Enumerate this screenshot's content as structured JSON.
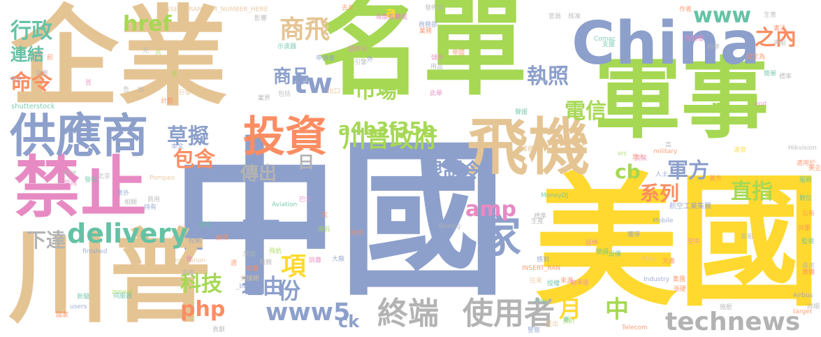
{
  "palette": {
    "green": "#a6d854",
    "tan": "#e5c494",
    "blue": "#8da0cb",
    "pink": "#e78ac3",
    "orange": "#fc8d62",
    "teal": "#66c2a5",
    "yellow": "#ffd92f",
    "gray": "#b3b3b3"
  },
  "words": [
    {
      "text": "中國",
      "color": "blue"
    },
    {
      "text": "美國",
      "color": "yellow"
    },
    {
      "text": "名單",
      "color": "green"
    },
    {
      "text": "企業",
      "color": "tan"
    },
    {
      "text": "軍事",
      "color": "green"
    },
    {
      "text": "China",
      "color": "blue"
    },
    {
      "text": "川普",
      "color": "tan"
    },
    {
      "text": "禁止",
      "color": "pink"
    },
    {
      "text": "飛機",
      "color": "tan"
    },
    {
      "text": "供應商",
      "color": "blue"
    },
    {
      "text": "投資",
      "color": "orange"
    },
    {
      "text": "家",
      "color": "blue"
    },
    {
      "text": "終端",
      "color": "gray"
    },
    {
      "text": "使用者",
      "color": "gray"
    },
    {
      "text": "technews",
      "color": "gray"
    },
    {
      "text": "www5",
      "color": "blue"
    },
    {
      "text": "delivery",
      "color": "teal"
    },
    {
      "text": "川普政府",
      "color": "green"
    },
    {
      "text": "www",
      "color": "teal"
    },
    {
      "text": "a4b3f35b",
      "color": "green"
    },
    {
      "text": "商飛",
      "color": "tan"
    },
    {
      "text": "行政",
      "color": "teal"
    },
    {
      "text": "連結",
      "color": "teal"
    },
    {
      "text": "命令",
      "color": "orange"
    },
    {
      "text": "執照",
      "color": "blue"
    },
    {
      "text": "電信",
      "color": "green"
    },
    {
      "text": "市場",
      "color": "green"
    },
    {
      "text": "草擬",
      "color": "blue"
    },
    {
      "text": "直指",
      "color": "green"
    },
    {
      "text": "軍方",
      "color": "blue"
    },
    {
      "text": "amp",
      "color": "pink"
    },
    {
      "text": "php",
      "color": "orange"
    },
    {
      "text": "科技",
      "color": "green"
    },
    {
      "text": "理由",
      "color": "blue"
    },
    {
      "text": "項",
      "color": "yellow"
    },
    {
      "text": "包含",
      "color": "orange"
    },
    {
      "text": "href",
      "color": "green"
    },
    {
      "text": "tw",
      "color": "blue"
    },
    {
      "text": "商品",
      "color": "blue"
    },
    {
      "text": "限制令",
      "color": "blue"
    },
    {
      "text": "傳出",
      "color": "gray"
    },
    {
      "text": "購買",
      "color": "blue"
    },
    {
      "text": "系列",
      "color": "orange"
    },
    {
      "text": "下達",
      "color": "gray"
    },
    {
      "text": "cb",
      "color": "green"
    },
    {
      "text": "月",
      "color": "yellow"
    },
    {
      "text": "中",
      "color": "green"
    },
    {
      "text": "ck",
      "color": "blue"
    },
    {
      "text": "份",
      "color": "blue"
    },
    {
      "text": "日",
      "color": "gray"
    },
    {
      "text": "之內",
      "color": "orange"
    },
    {
      "text": "n",
      "color": "green"
    },
    {
      "text": "a",
      "color": "yellow"
    },
    {
      "text": "INSERT_RANDOM_NUMBER_HERE",
      "color": "tan"
    },
    {
      "text": "shutterstock",
      "color": "teal"
    },
    {
      "text": "Comac",
      "color": "teal"
    },
    {
      "text": "Boeing",
      "color": "gray"
    },
    {
      "text": "Hikvision",
      "color": "gray"
    },
    {
      "text": "military",
      "color": "orange"
    },
    {
      "text": "Mobile",
      "color": "blue"
    },
    {
      "text": "Pompeo",
      "color": "tan"
    },
    {
      "text": "Aviation",
      "color": "teal"
    },
    {
      "text": "Corporation",
      "color": "tan"
    },
    {
      "text": "MoneyDJ",
      "color": "teal"
    },
    {
      "text": "finished",
      "color": "blue"
    },
    {
      "text": "航空工業集團",
      "color": "blue"
    },
    {
      "text": "Industry",
      "color": "blue"
    },
    {
      "text": "INSERT_RAN",
      "color": "orange"
    },
    {
      "text": "zoneid",
      "color": "green"
    },
    {
      "text": "users",
      "color": "blue"
    },
    {
      "text": "Airbus",
      "color": "blue"
    },
    {
      "text": "target",
      "color": "orange"
    },
    {
      "text": "Telecom",
      "color": "orange"
    },
    {
      "text": "img",
      "color": "teal"
    },
    {
      "text": "Mike",
      "color": "tan"
    },
    {
      "text": "end",
      "color": "pink"
    },
    {
      "text": "avw",
      "color": "gray"
    },
    {
      "text": "src",
      "color": "green"
    },
    {
      "text": "_blank",
      "color": "blue"
    },
    {
      "text": "支援",
      "color": "teal"
    },
    {
      "text": "科學",
      "color": "gray"
    },
    {
      "text": "認定為",
      "color": "orange"
    },
    {
      "text": "簡單",
      "color": "teal"
    },
    {
      "text": "官員",
      "color": "gray"
    },
    {
      "text": "核准",
      "color": "gray"
    },
    {
      "text": "生意",
      "color": "gray"
    },
    {
      "text": "書法",
      "color": "orange"
    },
    {
      "text": "導組",
      "color": "gray"
    },
    {
      "text": "作者",
      "color": "orange"
    },
    {
      "text": "控制權",
      "color": "pink"
    },
    {
      "text": "媒體",
      "color": "tan"
    },
    {
      "text": "波音",
      "color": "yellow"
    },
    {
      "text": "聲援",
      "color": "teal"
    },
    {
      "text": "去年",
      "color": "orange"
    },
    {
      "text": "影響",
      "color": "gray"
    },
    {
      "text": "發佈者",
      "color": "gray"
    },
    {
      "text": "轉載",
      "color": "pink"
    },
    {
      "text": "海康威視",
      "color": "pink"
    },
    {
      "text": "國際刊",
      "color": "pink"
    },
    {
      "text": "示波器",
      "color": "teal"
    },
    {
      "text": "申請書",
      "color": "blue"
    },
    {
      "text": "引擎",
      "color": "gray"
    },
    {
      "text": "儲存",
      "color": "pink"
    },
    {
      "text": "用品",
      "color": "gray"
    },
    {
      "text": "包括",
      "color": "gray"
    },
    {
      "text": "出口",
      "color": "tan"
    },
    {
      "text": "此舉",
      "color": "pink"
    },
    {
      "text": "業界",
      "color": "gray"
    },
    {
      "text": "巨擘",
      "color": "tan"
    },
    {
      "text": "計劃",
      "color": "orange"
    },
    {
      "text": "適用於",
      "color": "orange"
    },
    {
      "text": "服務",
      "color": "teal"
    },
    {
      "text": "數位",
      "color": "teal"
    },
    {
      "text": "公布",
      "color": "orange"
    },
    {
      "text": "共軍",
      "color": "orange"
    },
    {
      "text": "監視",
      "color": "teal"
    },
    {
      "text": "尋求",
      "color": "gray"
    },
    {
      "text": "實體",
      "color": "orange"
    },
    {
      "text": "標準",
      "color": "gray"
    },
    {
      "text": "生產",
      "color": "gray"
    },
    {
      "text": "延伸",
      "color": "pink"
    },
    {
      "text": "簡讀",
      "color": "teal"
    },
    {
      "text": "設備",
      "color": "teal"
    },
    {
      "text": "感到",
      "color": "blue"
    },
    {
      "text": "空中",
      "color": "pink"
    },
    {
      "text": "文書",
      "color": "orange"
    },
    {
      "text": "集團",
      "color": "orange"
    },
    {
      "text": "張硬",
      "color": "orange"
    },
    {
      "text": "施壓",
      "color": "gray"
    },
    {
      "text": "勉承座",
      "color": "pink"
    },
    {
      "text": "授權",
      "color": "teal"
    },
    {
      "text": "預計",
      "color": "green"
    },
    {
      "text": "提出",
      "color": "tan"
    },
    {
      "text": "往來",
      "color": "tan"
    },
    {
      "text": "警察",
      "color": "blue"
    },
    {
      "text": "航空",
      "color": "teal"
    },
    {
      "text": "解釋",
      "color": "orange"
    },
    {
      "text": "控制",
      "color": "blue"
    },
    {
      "text": "定義",
      "color": "gray"
    },
    {
      "text": "軟體",
      "color": "orange"
    },
    {
      "text": "依據將",
      "color": "tan"
    },
    {
      "text": "飛航",
      "color": "green"
    },
    {
      "text": "挑釁",
      "color": "pink"
    },
    {
      "text": "大廠",
      "color": "blue"
    },
    {
      "text": "伺服器",
      "color": "teal"
    },
    {
      "text": "新聞",
      "color": "teal"
    },
    {
      "text": "國家",
      "color": "orange"
    },
    {
      "text": "貢獻",
      "color": "gray"
    },
    {
      "text": "裝置",
      "color": "gray"
    },
    {
      "text": "中企",
      "color": "blue"
    },
    {
      "text": "草飛",
      "color": "pink"
    },
    {
      "text": "發布",
      "color": "teal"
    },
    {
      "text": "持有",
      "color": "blue"
    },
    {
      "text": "意外",
      "color": "blue"
    },
    {
      "text": "相關",
      "color": "gray"
    },
    {
      "text": "商用",
      "color": "gray"
    },
    {
      "text": "放話",
      "color": "gray"
    },
    {
      "text": "無關",
      "color": "gray"
    },
    {
      "text": "巴士",
      "color": "pink"
    },
    {
      "text": "完",
      "color": "orange"
    },
    {
      "text": "帶兵",
      "color": "green"
    },
    {
      "text": "抗中",
      "color": "orange"
    },
    {
      "text": "業務",
      "color": "orange"
    },
    {
      "text": "兵",
      "color": "green"
    },
    {
      "text": "首",
      "color": "pink"
    },
    {
      "text": "黑",
      "color": "green"
    },
    {
      "text": "沒",
      "color": "blue"
    },
    {
      "text": "告",
      "color": "gray"
    },
    {
      "text": "加",
      "color": "gray"
    },
    {
      "text": "光",
      "color": "gray"
    },
    {
      "text": "前",
      "color": "orange"
    },
    {
      "text": "會",
      "color": "pink"
    },
    {
      "text": "週",
      "color": "orange"
    },
    {
      "text": "外",
      "color": "blue"
    },
    {
      "text": "北京",
      "color": "gray"
    },
    {
      "text": "美方",
      "color": "orange"
    },
    {
      "text": "武裝",
      "color": "pink"
    },
    {
      "text": "放入",
      "color": "orange"
    },
    {
      "text": "高",
      "color": "gray"
    },
    {
      "text": "人士",
      "color": "blue"
    },
    {
      "text": "美企",
      "color": "orange"
    },
    {
      "text": "幫組",
      "color": "gray"
    },
    {
      "text": "詳細",
      "color": "gray"
    },
    {
      "text": "新",
      "color": "teal"
    },
    {
      "text": "本文",
      "color": "blue"
    },
    {
      "text": "帝國",
      "color": "orange"
    },
    {
      "text": "商務部",
      "color": "blue"
    },
    {
      "text": "標率",
      "color": "gray"
    },
    {
      "text": "來源",
      "color": "orange"
    },
    {
      "text": "獲得",
      "color": "blue"
    }
  ]
}
